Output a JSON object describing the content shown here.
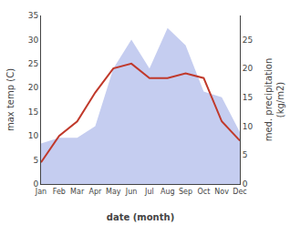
{
  "chart_data": {
    "type": "line",
    "categories": [
      "Jan",
      "Feb",
      "Mar",
      "Apr",
      "May",
      "Jun",
      "Jul",
      "Aug",
      "Sep",
      "Oct",
      "Nov",
      "Dec"
    ],
    "xlabel": "date (month)",
    "ylabel": "max temp (C)",
    "y2label": "med. precipitation\n(kg/m2)",
    "series": [
      {
        "type": "area",
        "axis": "y2",
        "color": "#c5cdf0",
        "values": [
          7.0,
          8.0,
          8.0,
          10.0,
          20.0,
          25.0,
          20.0,
          27.0,
          24.0,
          16.0,
          15.0,
          9.0
        ]
      },
      {
        "type": "line",
        "color": "#c0392b",
        "values": [
          4.5,
          10.0,
          13.0,
          19.0,
          24.0,
          25.0,
          22.0,
          22.0,
          23.0,
          22.0,
          13.0,
          9.0
        ]
      }
    ],
    "ylim": [
      0,
      35
    ],
    "yticks": [
      0,
      5,
      10,
      15,
      20,
      25,
      30,
      35
    ],
    "y2lim": [
      0,
      29.17
    ],
    "y2ticks": [
      0,
      5,
      10,
      15,
      20,
      25
    ],
    "grid": false
  }
}
